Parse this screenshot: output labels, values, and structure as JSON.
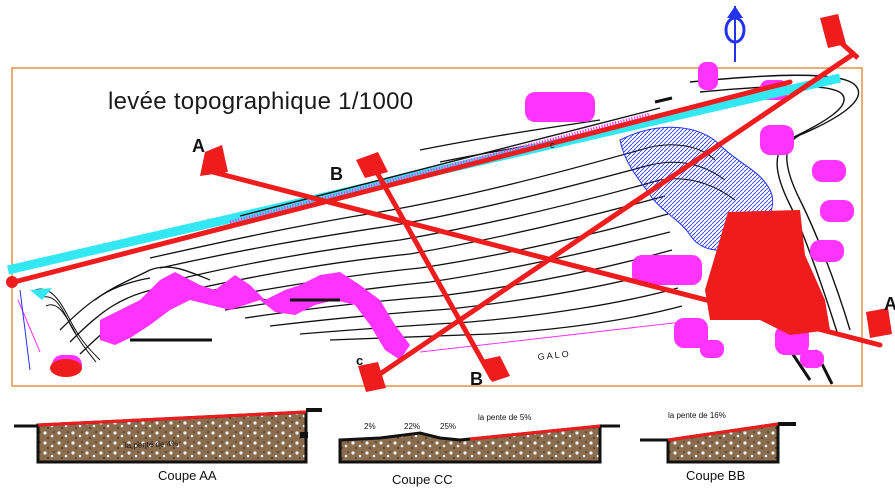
{
  "title": "levée topographique 1/1000",
  "section_letters": {
    "a_left": "A",
    "a_right": "A",
    "b_top": "B",
    "b_bottom": "B",
    "c_bottom": "c",
    "c_top": "c"
  },
  "road_label": "G A L O",
  "sections": {
    "aa": {
      "caption": "Coupe AA",
      "slope_text": "la pente de 4%"
    },
    "cc": {
      "caption": "Coupe CC",
      "slope_text": "la pente de 5%",
      "grades": [
        "2%",
        "22%",
        "25%"
      ]
    },
    "bb": {
      "caption": "Coupe BB",
      "slope_text": "la pente de 16%"
    }
  },
  "colors": {
    "frame": "#e08a3c",
    "section_line": "#ee1c1c",
    "magenta": "#ff33ff",
    "cyan": "#33e8f2",
    "blue": "#2233ee",
    "black": "#111111"
  },
  "north_symbol": "north-arrow-icon"
}
